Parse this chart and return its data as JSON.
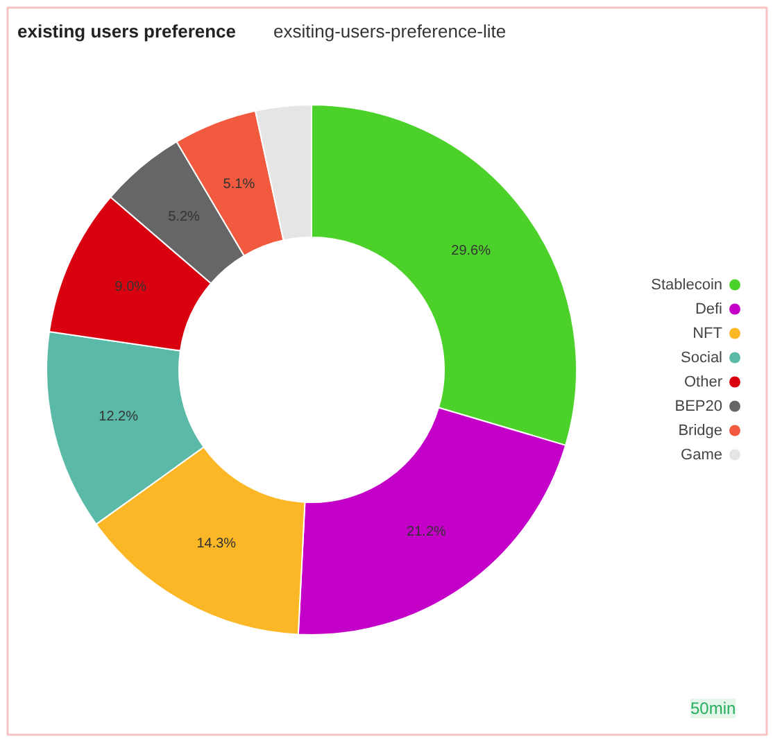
{
  "chart_data": {
    "type": "donut",
    "title": "existing users preference",
    "subtitle": "exsiting-users-preference-lite",
    "categories": [
      "Stablecoin",
      "Defi",
      "NFT",
      "Social",
      "Other",
      "BEP20",
      "Bridge",
      "Game"
    ],
    "values": [
      29.6,
      21.2,
      14.3,
      12.2,
      9.0,
      5.2,
      5.1,
      3.4
    ],
    "colors": [
      "#4cd12a",
      "#c400c8",
      "#fbb725",
      "#5bbaa7",
      "#d9000f",
      "#666666",
      "#f25a3f",
      "#e5e5e5"
    ],
    "value_labels": [
      "29.6%",
      "21.2%",
      "14.3%",
      "12.2%",
      "9.0%",
      "5.2%",
      "5.1%",
      null
    ],
    "legend": "right",
    "annotations": [
      "50min"
    ]
  }
}
